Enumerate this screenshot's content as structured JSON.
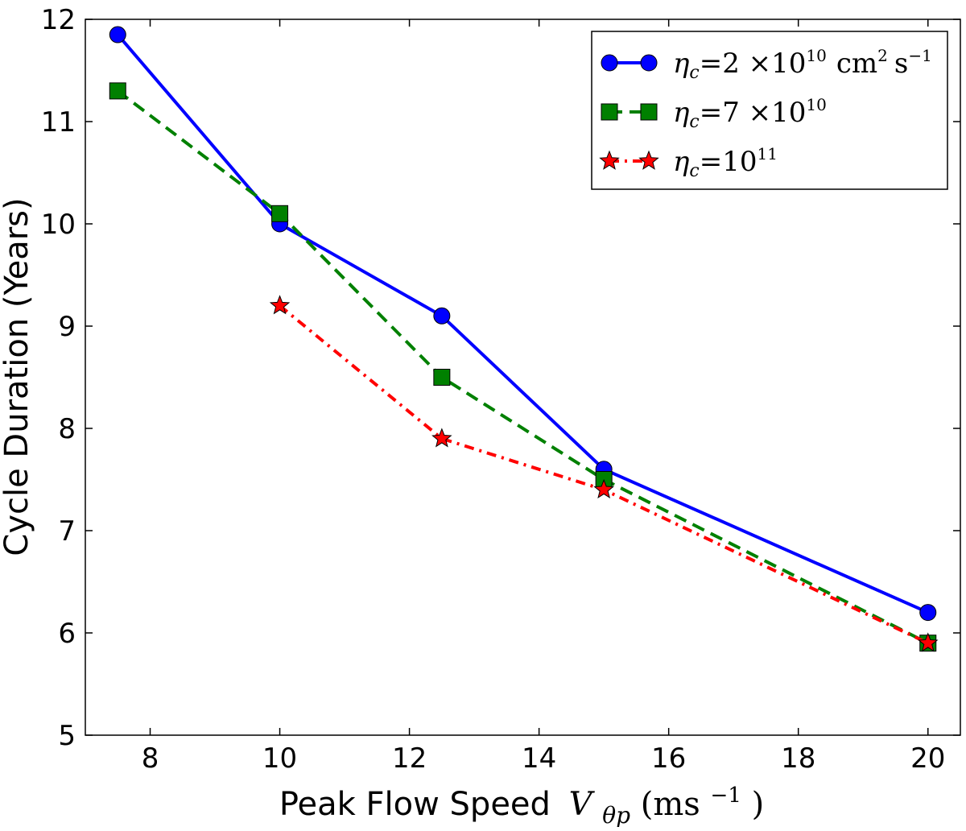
{
  "chart_data": {
    "type": "line",
    "title": "",
    "xlabel": "Peak Flow Speed",
    "xlabel_symbol": "V",
    "xlabel_subscript": "θp",
    "xlabel_unit_open": "(ms",
    "xlabel_unit_exp": "−1",
    "xlabel_unit_close": ")",
    "ylabel": "Cycle Duration (Years)",
    "xlim": [
      7,
      20.5
    ],
    "ylim": [
      5,
      12
    ],
    "xticks": [
      8,
      10,
      12,
      14,
      16,
      18,
      20
    ],
    "yticks": [
      5,
      6,
      7,
      8,
      9,
      10,
      11,
      12
    ],
    "grid": false,
    "legend_position": "top-right",
    "series": [
      {
        "name": "eta_c = 2 x 10^10 cm^2 s^-1",
        "legend_symbol": "η",
        "legend_sub": "c",
        "legend_value": "=2 ×10",
        "legend_exp": "10",
        "legend_unit_a": "cm",
        "legend_unit_a_exp": "2",
        "legend_unit_b": "s",
        "legend_unit_b_exp": "−1",
        "color": "#0000ff",
        "marker": "circle",
        "linestyle": "solid",
        "x": [
          7.5,
          10,
          12.5,
          15,
          20
        ],
        "y": [
          11.85,
          10.0,
          9.1,
          7.6,
          6.2
        ]
      },
      {
        "name": "eta_c = 7 x 10^10",
        "legend_symbol": "η",
        "legend_sub": "c",
        "legend_value": "=7 ×10",
        "legend_exp": "10",
        "color": "#008000",
        "marker": "square",
        "linestyle": "dashed",
        "x": [
          7.5,
          10,
          12.5,
          15,
          20
        ],
        "y": [
          11.3,
          10.1,
          8.5,
          7.5,
          5.9
        ]
      },
      {
        "name": "eta_c = 10^11",
        "legend_symbol": "η",
        "legend_sub": "c",
        "legend_value": "=10",
        "legend_exp": "11",
        "color": "#ff0000",
        "marker": "star",
        "linestyle": "dashdot",
        "x": [
          10,
          12.5,
          15,
          20
        ],
        "y": [
          9.2,
          7.9,
          7.4,
          5.9
        ]
      }
    ]
  }
}
